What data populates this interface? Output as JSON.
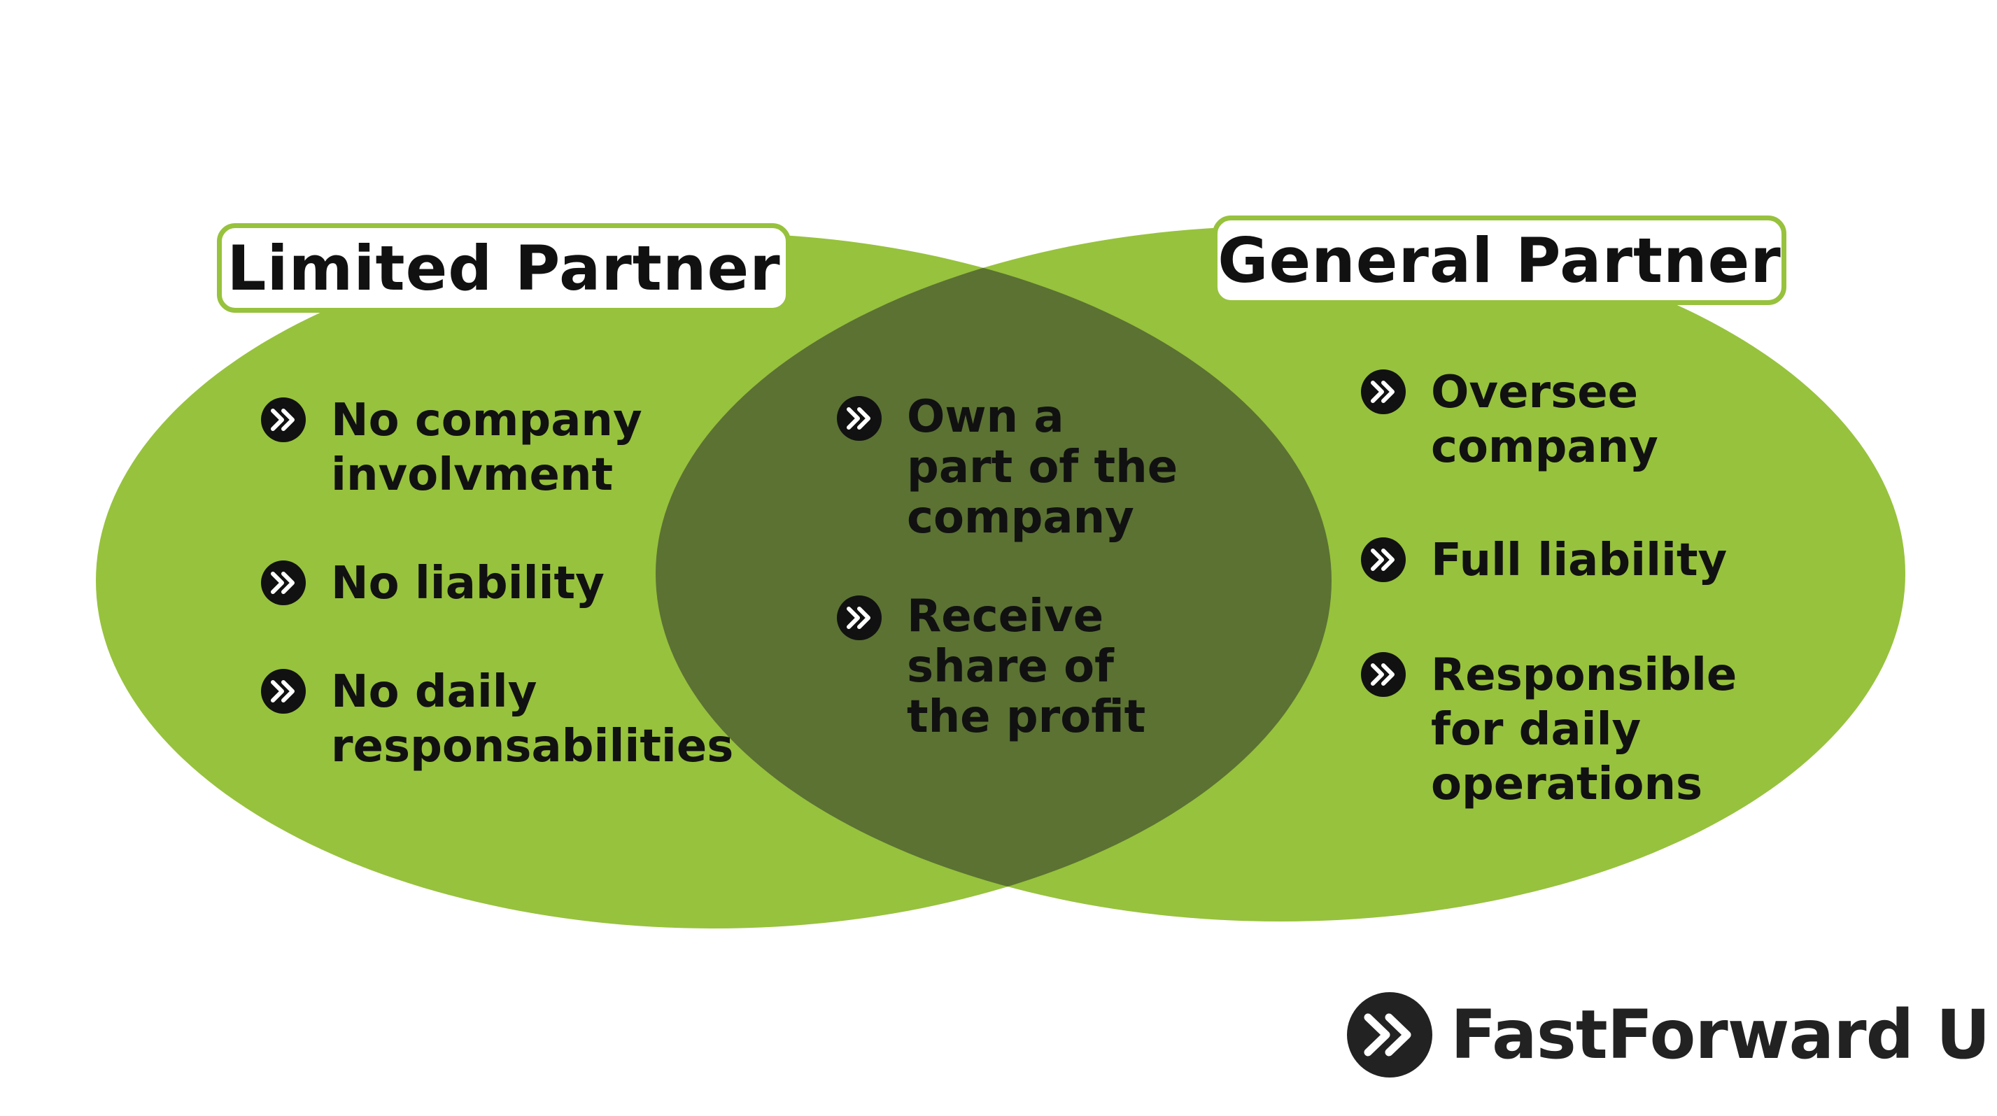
{
  "colors": {
    "circle": "#97c23d",
    "overlap": "#5b7233",
    "text": "#111111",
    "bullet": "#111111",
    "bullet_arrow": "#ffffff"
  },
  "diagram": {
    "left_set": {
      "title": "Limited Partner",
      "items": [
        "No company\ninvolvment",
        "No liability",
        "No daily\nresponsabilities"
      ]
    },
    "right_set": {
      "title": "General Partner",
      "items": [
        "Oversee\ncompany",
        "Full liability",
        "Responsible\nfor daily\noperations"
      ]
    },
    "overlap": {
      "items": [
        "Own a\npart of the\ncompany",
        "Receive\nshare of\nthe profit"
      ]
    }
  },
  "icons": {
    "bullet": "double-chevron-right-icon",
    "logo": "fastforward-logo-icon"
  },
  "logo": {
    "text": "FastForward U"
  }
}
